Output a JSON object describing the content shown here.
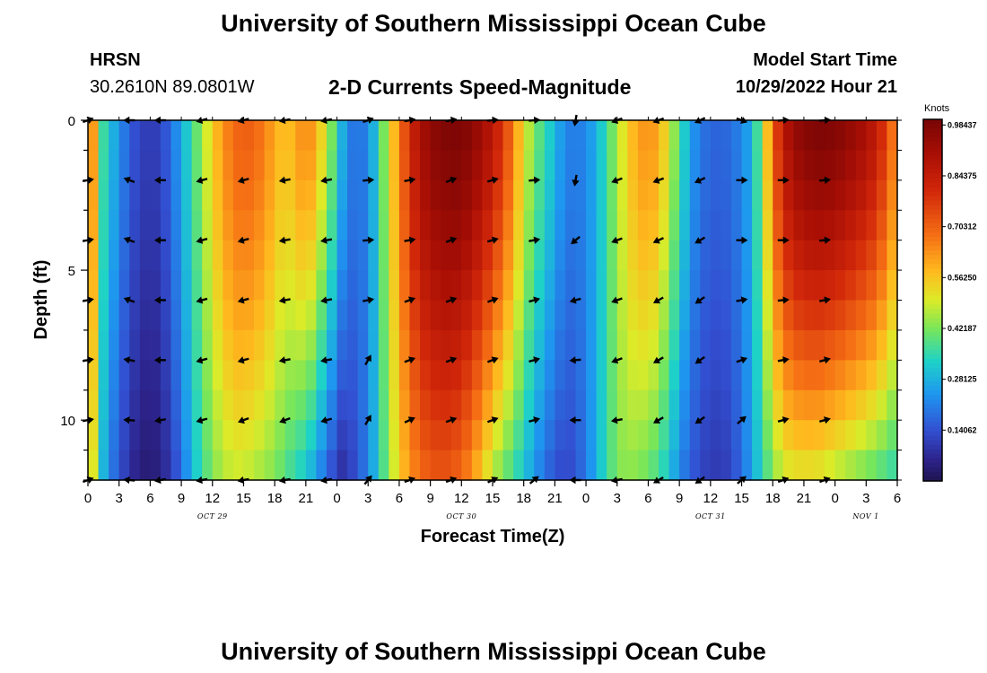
{
  "page": {
    "title_top": "University of Southern Mississippi Ocean Cube",
    "title_bottom": "University of Southern Mississippi Ocean Cube",
    "station_name": "HRSN",
    "station_coords": "30.2610N  89.0801W",
    "chart_title": "2-D Currents Speed-Magnitude",
    "model_start_label": "Model Start Time",
    "model_start_value": "10/29/2022 Hour 21"
  },
  "chart_data": {
    "type": "heatmap",
    "title": "2-D Currents Speed-Magnitude",
    "xlabel": "Forecast Time(Z)",
    "ylabel": "Depth (ft)",
    "x_hours_range": [
      0,
      78
    ],
    "y_range_ft": [
      0,
      12
    ],
    "x_tick_labels": [
      "0",
      "3",
      "6",
      "9",
      "12",
      "15",
      "18",
      "21",
      "0",
      "3",
      "6",
      "9",
      "12",
      "15",
      "18",
      "21",
      "0",
      "3",
      "6",
      "9",
      "12",
      "15",
      "18",
      "21",
      "0",
      "3",
      "6"
    ],
    "y_tick_labels": [
      "0",
      "5",
      "10"
    ],
    "y_tick_values": [
      0,
      5,
      10
    ],
    "date_labels": [
      {
        "text": "OCT 29",
        "hour": 12
      },
      {
        "text": "OCT 30",
        "hour": 36
      },
      {
        "text": "OCT 31",
        "hour": 60
      },
      {
        "text": "NOV 1",
        "hour": 84
      }
    ],
    "colorbar": {
      "unit": "Knots",
      "min": 0.0,
      "max": 1.0,
      "tick_labels": [
        "0.98437",
        "0.84375",
        "0.70312",
        "0.56250",
        "0.42187",
        "0.28125",
        "0.14062"
      ],
      "tick_values": [
        0.984375,
        0.84375,
        0.703125,
        0.5625,
        0.421875,
        0.28125,
        0.140625
      ]
    },
    "speed_profile": {
      "hours": [
        0,
        0.5,
        1,
        1.5,
        2,
        3,
        4,
        5,
        6,
        7,
        8,
        9,
        10,
        11,
        12,
        13,
        14,
        15,
        16,
        17,
        18,
        19,
        20,
        21,
        22,
        23,
        24,
        24.5,
        25,
        26,
        27,
        28,
        29,
        30,
        31,
        32,
        33,
        34,
        35,
        36,
        37,
        38,
        39,
        40,
        41,
        42,
        43,
        44,
        45,
        46,
        47,
        48,
        49,
        50,
        51,
        52,
        53,
        54,
        55,
        56,
        57,
        58,
        59,
        60,
        61,
        62,
        63,
        64,
        65,
        66,
        67,
        68,
        69,
        70,
        71,
        72,
        73,
        74,
        75,
        76,
        77,
        78
      ],
      "surface": [
        0.72,
        0.62,
        0.45,
        0.36,
        0.31,
        0.24,
        0.16,
        0.12,
        0.1,
        0.12,
        0.18,
        0.27,
        0.36,
        0.45,
        0.55,
        0.63,
        0.69,
        0.71,
        0.7,
        0.66,
        0.6,
        0.56,
        0.6,
        0.66,
        0.6,
        0.48,
        0.36,
        0.28,
        0.22,
        0.18,
        0.22,
        0.34,
        0.5,
        0.66,
        0.8,
        0.9,
        0.95,
        0.98,
        0.99,
        0.99,
        0.96,
        0.92,
        0.86,
        0.78,
        0.66,
        0.52,
        0.42,
        0.36,
        0.29,
        0.22,
        0.2,
        0.22,
        0.28,
        0.36,
        0.46,
        0.55,
        0.61,
        0.64,
        0.6,
        0.5,
        0.38,
        0.26,
        0.2,
        0.17,
        0.17,
        0.18,
        0.22,
        0.28,
        0.45,
        0.7,
        0.86,
        0.94,
        0.97,
        0.99,
        0.99,
        0.98,
        0.96,
        0.93,
        0.9,
        0.85,
        0.75,
        0.62
      ],
      "bottom": [
        0.58,
        0.5,
        0.36,
        0.28,
        0.22,
        0.14,
        0.08,
        0.04,
        0.03,
        0.05,
        0.1,
        0.18,
        0.28,
        0.36,
        0.42,
        0.46,
        0.48,
        0.48,
        0.46,
        0.44,
        0.42,
        0.38,
        0.34,
        0.3,
        0.24,
        0.16,
        0.1,
        0.08,
        0.1,
        0.14,
        0.22,
        0.32,
        0.44,
        0.54,
        0.62,
        0.68,
        0.71,
        0.72,
        0.71,
        0.68,
        0.62,
        0.54,
        0.46,
        0.4,
        0.36,
        0.3,
        0.24,
        0.18,
        0.14,
        0.12,
        0.14,
        0.2,
        0.28,
        0.36,
        0.42,
        0.44,
        0.42,
        0.4,
        0.36,
        0.3,
        0.22,
        0.16,
        0.12,
        0.1,
        0.1,
        0.12,
        0.18,
        0.26,
        0.34,
        0.42,
        0.48,
        0.5,
        0.5,
        0.5,
        0.48,
        0.46,
        0.44,
        0.42,
        0.4,
        0.38,
        0.36,
        0.34
      ]
    },
    "arrows": {
      "depths_ft": [
        0,
        2,
        4,
        6,
        8,
        10,
        12
      ],
      "columns": [
        {
          "hour": 0,
          "angles_deg": [
            20,
            10,
            10,
            10,
            10,
            10,
            20
          ]
        },
        {
          "hour": 4,
          "angles_deg": [
            180,
            160,
            160,
            160,
            170,
            175,
            175
          ]
        },
        {
          "hour": 7,
          "angles_deg": [
            180,
            180,
            180,
            180,
            180,
            190,
            190
          ]
        },
        {
          "hour": 11,
          "angles_deg": [
            195,
            195,
            195,
            195,
            195,
            195,
            190
          ]
        },
        {
          "hour": 15,
          "angles_deg": [
            195,
            195,
            195,
            195,
            195,
            200,
            190
          ]
        },
        {
          "hour": 19,
          "angles_deg": [
            190,
            190,
            190,
            190,
            190,
            200,
            190
          ]
        },
        {
          "hour": 23,
          "angles_deg": [
            190,
            190,
            190,
            190,
            190,
            195,
            190
          ]
        },
        {
          "hour": 27,
          "angles_deg": [
            20,
            5,
            5,
            10,
            60,
            60,
            50
          ]
        },
        {
          "hour": 31,
          "angles_deg": [
            10,
            10,
            10,
            20,
            20,
            25,
            20
          ]
        },
        {
          "hour": 35,
          "angles_deg": [
            10,
            20,
            20,
            20,
            20,
            20,
            20
          ]
        },
        {
          "hour": 39,
          "angles_deg": [
            5,
            15,
            15,
            20,
            20,
            20,
            25
          ]
        },
        {
          "hour": 43,
          "angles_deg": [
            5,
            5,
            10,
            15,
            15,
            15,
            40
          ]
        },
        {
          "hour": 47,
          "angles_deg": [
            260,
            260,
            220,
            195,
            185,
            180,
            180
          ]
        },
        {
          "hour": 51,
          "angles_deg": [
            200,
            200,
            200,
            200,
            200,
            190,
            190
          ]
        },
        {
          "hour": 55,
          "angles_deg": [
            200,
            200,
            205,
            210,
            210,
            210,
            210
          ]
        },
        {
          "hour": 59,
          "angles_deg": [
            205,
            205,
            210,
            215,
            215,
            215,
            215
          ]
        },
        {
          "hour": 63,
          "angles_deg": [
            340,
            0,
            0,
            10,
            20,
            40,
            40
          ]
        },
        {
          "hour": 67,
          "angles_deg": [
            5,
            0,
            0,
            5,
            10,
            15,
            20
          ]
        },
        {
          "hour": 71,
          "angles_deg": [
            5,
            5,
            5,
            10,
            15,
            15,
            20
          ]
        }
      ]
    }
  }
}
